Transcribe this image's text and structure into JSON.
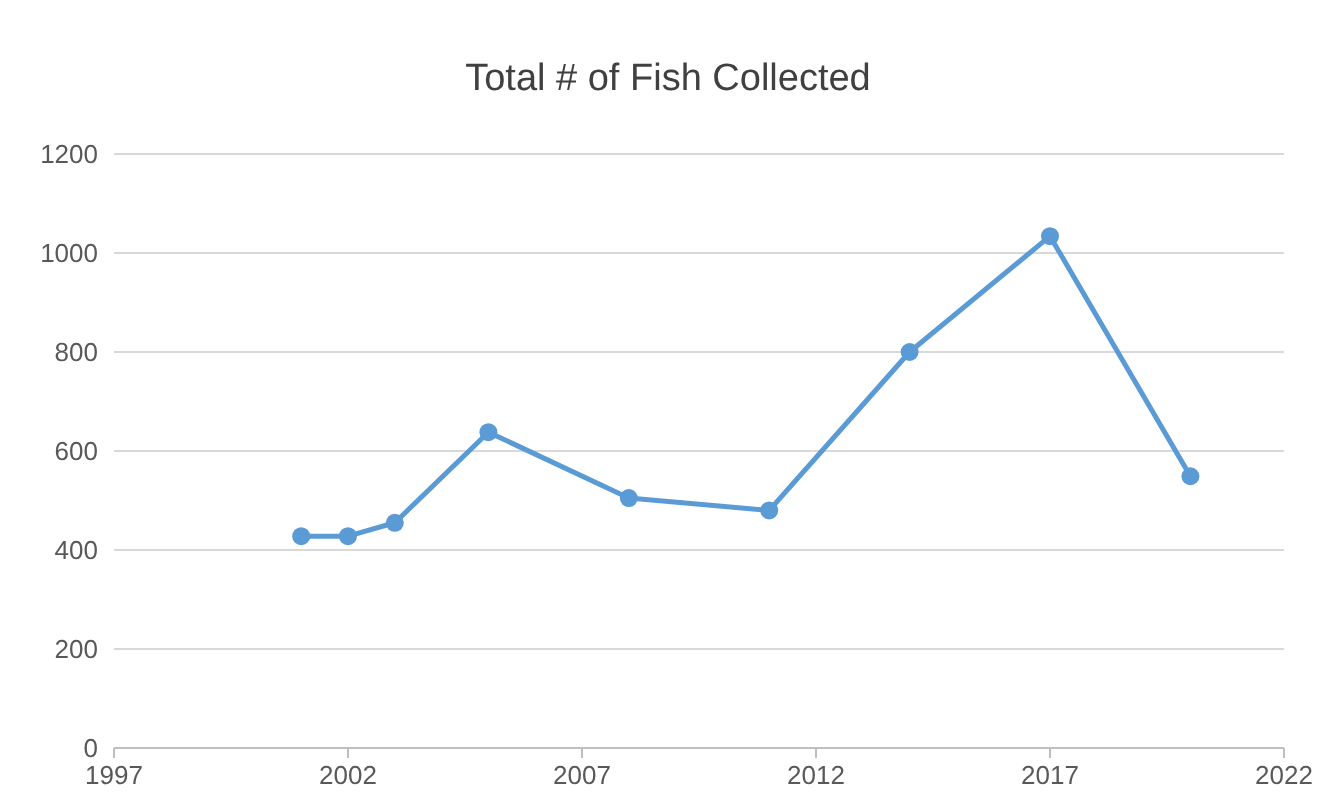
{
  "chart_data": {
    "type": "line",
    "title": "Total # of Fish Collected",
    "x": [
      2001,
      2002,
      2003,
      2005,
      2008,
      2011,
      2014,
      2017,
      2020
    ],
    "series": [
      {
        "color": "#5b9bd5",
        "values": [
          428,
          428,
          455,
          638,
          505,
          480,
          800,
          1034,
          549
        ]
      }
    ],
    "xlim": [
      1997,
      2022
    ],
    "xticks": [
      1997,
      2002,
      2007,
      2012,
      2017,
      2022
    ],
    "ylim": [
      0,
      1200
    ],
    "yticks": [
      0,
      200,
      400,
      600,
      800,
      1000,
      1200
    ],
    "grid": "y",
    "marker": "circle",
    "line_style": "solid"
  }
}
